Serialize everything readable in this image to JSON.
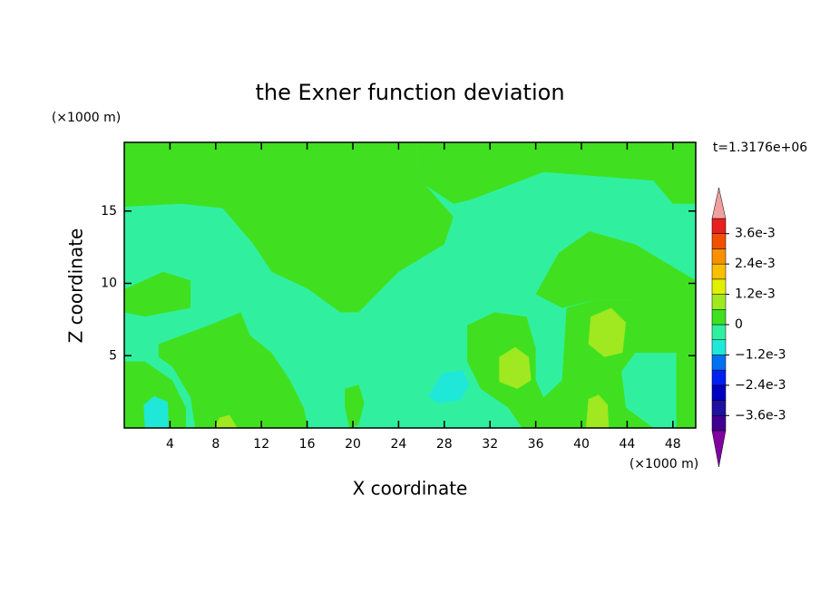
{
  "chart_data": {
    "type": "contour",
    "title": "the Exner function deviation",
    "x_label": "X coordinate",
    "y_label": "Z coordinate",
    "x_unit": "(×1000 m)",
    "y_unit": "(×1000 m)",
    "annotation": "t=1.3176e+06",
    "xlim": [
      0,
      50
    ],
    "ylim": [
      0,
      19.75
    ],
    "xticks": [
      4,
      8,
      12,
      16,
      20,
      24,
      28,
      32,
      36,
      40,
      44,
      48
    ],
    "yticks": [
      5,
      10,
      15
    ],
    "levels": [
      -0.0042,
      -0.0036,
      -0.003,
      -0.0024,
      -0.0018,
      -0.0012,
      -0.0006,
      0,
      0.0006,
      0.0012,
      0.0018,
      0.0024,
      0.003,
      0.0036,
      0.0042
    ],
    "colors": [
      "#400090",
      "#2010a0",
      "#0000c0",
      "#0020f0",
      "#0070f0",
      "#20e8d8",
      "#30f0a0",
      "#40e020",
      "#a0e820",
      "#e0f000",
      "#f8c000",
      "#f89000",
      "#f05000",
      "#e82020"
    ],
    "extend_colors": [
      "#8000a0",
      "#f0a0a0"
    ],
    "colorbar_ticks": [
      {
        "value": 0.0036,
        "label": "3.6e-3"
      },
      {
        "value": 0.0024,
        "label": "2.4e-3"
      },
      {
        "value": 0.0012,
        "label": "1.2e-3"
      },
      0,
      {
        "value": -0.0012,
        "label": "−1.2e-3"
      },
      {
        "value": -0.0024,
        "label": "−2.4e-3"
      },
      {
        "value": -0.0036,
        "label": "−3.6e-3"
      }
    ],
    "regions": [
      {
        "value": -0.0003,
        "points": [
          [
            0,
            0
          ],
          [
            50,
            0
          ],
          [
            50,
            19.75
          ],
          [
            0,
            19.75
          ]
        ]
      },
      {
        "value": 0.0003,
        "points": [
          [
            0,
            19.75
          ],
          [
            25.6,
            19.75
          ],
          [
            25.6,
            18
          ],
          [
            26.4,
            16.75
          ],
          [
            28.8,
            14.6
          ],
          [
            28,
            12.7
          ],
          [
            24,
            10.8
          ],
          [
            22.5,
            9.6
          ],
          [
            20.5,
            8
          ],
          [
            18.9,
            8
          ],
          [
            16.1,
            9.6
          ],
          [
            12.9,
            10.8
          ],
          [
            11.3,
            12.7
          ],
          [
            8.6,
            15.2
          ],
          [
            5,
            15.5
          ],
          [
            0,
            15.3
          ]
        ]
      },
      {
        "value": 0.0003,
        "points": [
          [
            25.6,
            19.75
          ],
          [
            50,
            19.75
          ],
          [
            50,
            15.5
          ],
          [
            48,
            15.5
          ],
          [
            46.3,
            17.1
          ],
          [
            36.7,
            17.7
          ],
          [
            32.4,
            16.4
          ],
          [
            30.4,
            15.8
          ],
          [
            28.8,
            15.5
          ],
          [
            26.4,
            16.75
          ],
          [
            25.6,
            18
          ]
        ]
      },
      {
        "value": 0.0003,
        "points": [
          [
            0,
            9.6
          ],
          [
            3.4,
            10.8
          ],
          [
            5.8,
            10.2
          ],
          [
            5.8,
            8.3
          ],
          [
            1.8,
            7.7
          ],
          [
            0,
            8
          ]
        ]
      },
      {
        "value": 0.0003,
        "points": [
          [
            3,
            5.8
          ],
          [
            7.4,
            7.1
          ],
          [
            10.2,
            8
          ],
          [
            11,
            6.4
          ],
          [
            12.9,
            5.2
          ],
          [
            14.5,
            3.3
          ],
          [
            15.7,
            1.4
          ],
          [
            16.1,
            0
          ],
          [
            6.2,
            0
          ],
          [
            5.8,
            2.1
          ],
          [
            4.2,
            4.25
          ],
          [
            3,
            4.9
          ]
        ]
      },
      {
        "value": 0.0003,
        "points": [
          [
            0,
            4.6
          ],
          [
            1.8,
            4.6
          ],
          [
            4.2,
            3.3
          ],
          [
            5.4,
            1.4
          ],
          [
            5.4,
            0
          ],
          [
            0,
            0
          ]
        ]
      },
      {
        "value": 0.0003,
        "points": [
          [
            30,
            7.1
          ],
          [
            32.4,
            8
          ],
          [
            35.2,
            7.7
          ],
          [
            36,
            5.5
          ],
          [
            36,
            3.3
          ],
          [
            36.7,
            2.1
          ],
          [
            38.3,
            3.3
          ],
          [
            38.7,
            8.3
          ],
          [
            41.5,
            8.9
          ],
          [
            44.7,
            8.9
          ],
          [
            48,
            7.1
          ],
          [
            48.3,
            5.2
          ],
          [
            44.7,
            5.2
          ],
          [
            43.5,
            3.9
          ],
          [
            43.9,
            1.4
          ],
          [
            46.3,
            0
          ],
          [
            34.8,
            0
          ],
          [
            33.6,
            1.4
          ],
          [
            31.2,
            2.7
          ],
          [
            30,
            4.6
          ]
        ]
      },
      {
        "value": 0.0003,
        "points": [
          [
            36,
            9.25
          ],
          [
            38,
            12.1
          ],
          [
            40.7,
            13.6
          ],
          [
            44.7,
            12.7
          ],
          [
            50,
            10.2
          ],
          [
            50,
            0
          ],
          [
            48.3,
            0
          ],
          [
            48.3,
            5.2
          ],
          [
            46.3,
            5.2
          ],
          [
            44.7,
            8.9
          ],
          [
            41.5,
            8.9
          ],
          [
            38.3,
            8.3
          ]
        ]
      },
      {
        "value": 0.0003,
        "points": [
          [
            19.3,
            2.7
          ],
          [
            20.5,
            3
          ],
          [
            21,
            1.75
          ],
          [
            20.5,
            0.2
          ],
          [
            19.7,
            0
          ],
          [
            19.3,
            1.4
          ]
        ]
      },
      {
        "value": 0.0009,
        "points": [
          [
            32.8,
            4.9
          ],
          [
            34.2,
            5.6
          ],
          [
            35.4,
            4.9
          ],
          [
            35.6,
            3.3
          ],
          [
            34.4,
            2.7
          ],
          [
            32.8,
            3.2
          ]
        ]
      },
      {
        "value": 0.0009,
        "points": [
          [
            40.8,
            7.7
          ],
          [
            42.6,
            8.3
          ],
          [
            43.9,
            7.3
          ],
          [
            43.6,
            5.2
          ],
          [
            42,
            4.9
          ],
          [
            40.6,
            5.8
          ]
        ]
      },
      {
        "value": 0.0009,
        "points": [
          [
            40.4,
            0
          ],
          [
            40.6,
            2
          ],
          [
            41.5,
            2.3
          ],
          [
            42.3,
            1.6
          ],
          [
            42.4,
            0
          ]
        ]
      },
      {
        "value": 0.0009,
        "points": [
          [
            7.9,
            0
          ],
          [
            8.3,
            0.7
          ],
          [
            9.2,
            0.9
          ],
          [
            9.9,
            0
          ]
        ]
      },
      {
        "value": -0.0009,
        "points": [
          [
            26.6,
            2.2
          ],
          [
            27.8,
            3.8
          ],
          [
            29.6,
            4
          ],
          [
            30.2,
            3
          ],
          [
            29.4,
            1.9
          ],
          [
            27.4,
            1.7
          ]
        ]
      },
      {
        "value": -0.0009,
        "points": [
          [
            1.8,
            0
          ],
          [
            1.7,
            1.6
          ],
          [
            2.6,
            2.2
          ],
          [
            3.8,
            1.8
          ],
          [
            3.9,
            0
          ]
        ]
      }
    ]
  }
}
